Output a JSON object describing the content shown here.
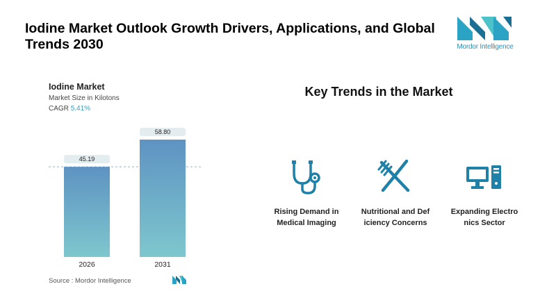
{
  "header": {
    "title": "Iodine Market Outlook Growth Drivers, Applications, and Global Trends 2030",
    "logo_text": "Mordor Intelligence"
  },
  "chart_panel": {
    "title": "Iodine Market",
    "subtitle": "Market Size in Kilotons",
    "cagr_label": "CAGR",
    "cagr_value": "5.41%",
    "source": "Source :  Mordor Intelligence"
  },
  "chart_data": {
    "type": "bar",
    "title": "Iodine Market",
    "subtitle": "Market Size in Kilotons",
    "categories": [
      "2026",
      "2031"
    ],
    "values": [
      45.19,
      58.8
    ],
    "value_labels": [
      "45.19",
      "58.80"
    ],
    "ylim": [
      0,
      58.8
    ],
    "grid": false,
    "reference_line": 45.19,
    "colors": {
      "bar_top": "#5e93c2",
      "bar_bottom": "#7ec7ce",
      "label_bg": "#e3ecef",
      "ref_line": "#9ab1bc"
    }
  },
  "trends": {
    "title": "Key Trends in the Market",
    "items": [
      {
        "icon": "stethoscope-icon",
        "label": "Rising Demand in\nMedical Imaging"
      },
      {
        "icon": "fork-knife-icon",
        "label": "Nutritional and Def\niciency Concerns"
      },
      {
        "icon": "computer-icon",
        "label": "Expanding Electro\nnics Sector"
      }
    ],
    "icon_color": "#1f80a8"
  }
}
